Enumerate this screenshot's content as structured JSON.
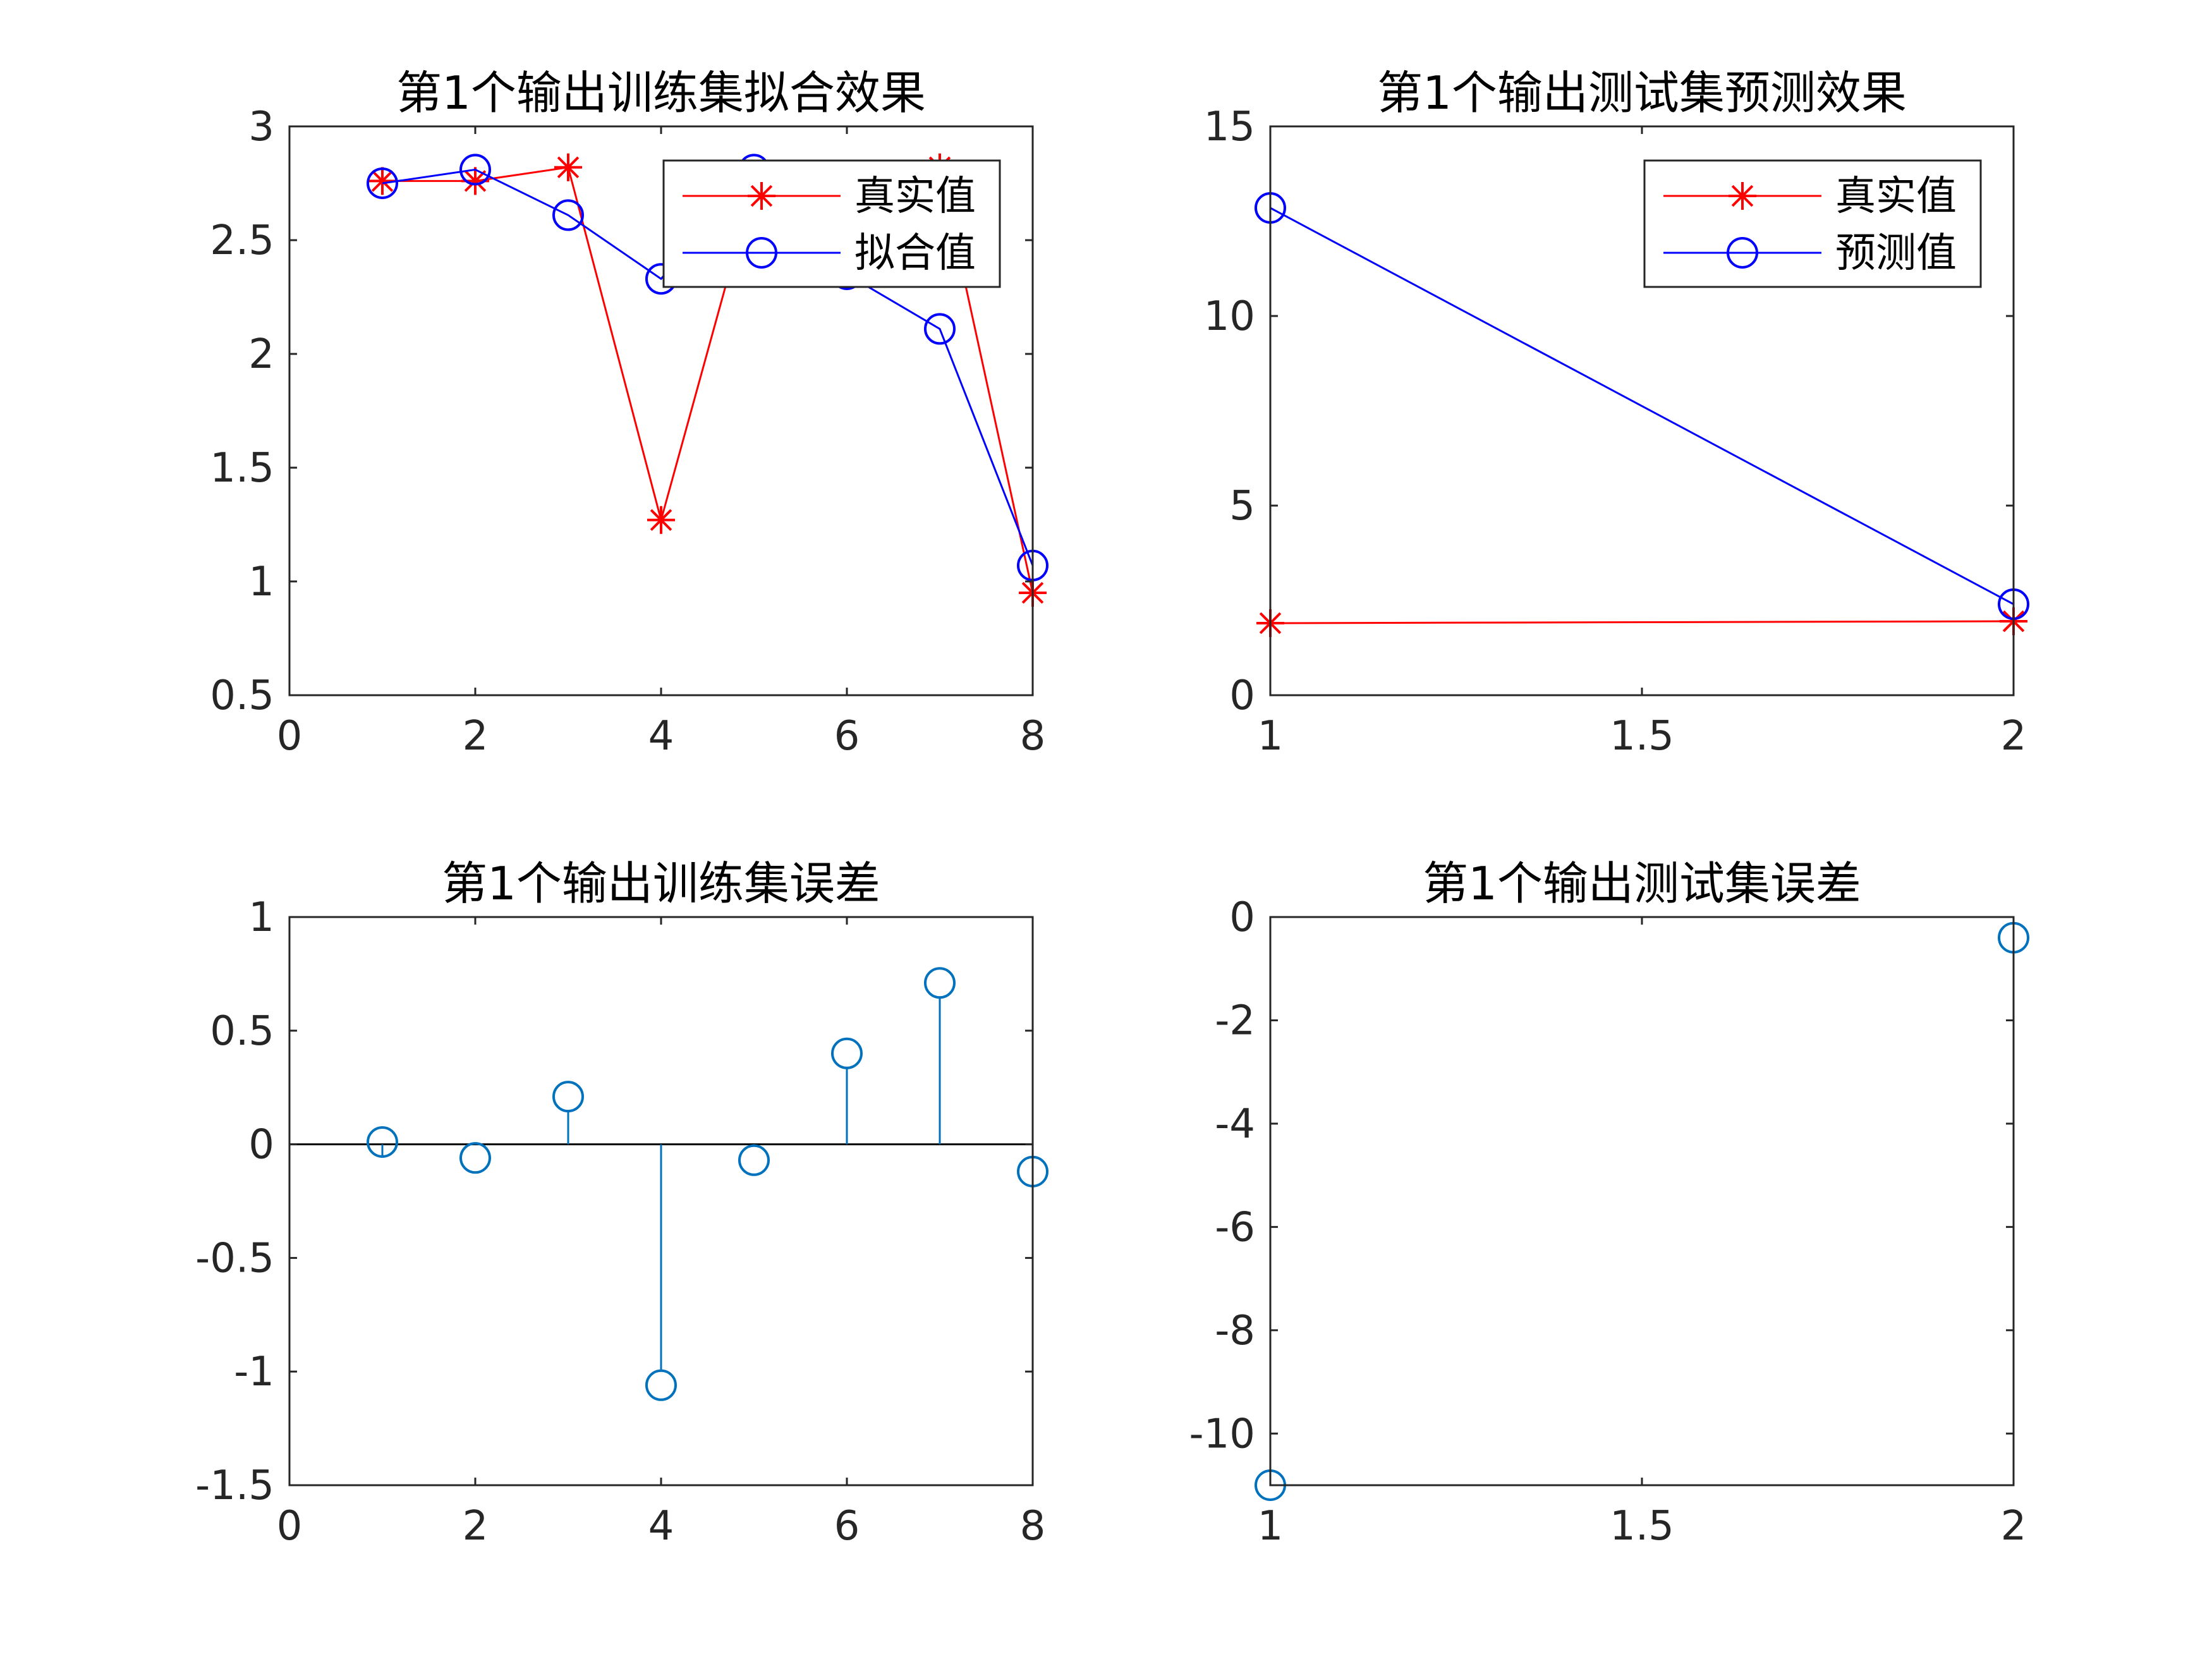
{
  "colors": {
    "true_value": "#ff0000",
    "predicted_value": "#0000ff",
    "error_stem": "#0072bd",
    "zero_line": "#000000",
    "axis": "#262626",
    "background": "#ffffff"
  },
  "chart_data": [
    {
      "id": "train-fit",
      "type": "line",
      "title": "第1个输出训练集拟合效果",
      "xlabel": "",
      "ylabel": "",
      "xlim": [
        0,
        8
      ],
      "ylim": [
        0.5,
        3
      ],
      "xticks": [
        0,
        2,
        4,
        6,
        8
      ],
      "xtick_labels": [
        "0",
        "2",
        "4",
        "6",
        "8"
      ],
      "yticks": [
        0.5,
        1,
        1.5,
        2,
        2.5,
        3
      ],
      "ytick_labels": [
        "0.5",
        "1",
        "1.5",
        "2",
        "2.5",
        "3"
      ],
      "grid": false,
      "legend_position": "top-right",
      "series": [
        {
          "name": "真实值",
          "color": "#ff0000",
          "marker": "asterisk",
          "x": [
            1,
            2,
            3,
            4,
            5,
            6,
            7,
            8
          ],
          "y": [
            2.76,
            2.76,
            2.82,
            1.27,
            2.75,
            2.75,
            2.82,
            0.95
          ]
        },
        {
          "name": "拟合值",
          "color": "#0000ff",
          "marker": "circle",
          "x": [
            1,
            2,
            3,
            4,
            5,
            6,
            7,
            8
          ],
          "y": [
            2.75,
            2.81,
            2.61,
            2.33,
            2.81,
            2.35,
            2.11,
            1.07
          ]
        }
      ]
    },
    {
      "id": "test-predict",
      "type": "line",
      "title": "第1个输出测试集预测效果",
      "xlabel": "",
      "ylabel": "",
      "xlim": [
        1,
        2
      ],
      "ylim": [
        0,
        15
      ],
      "xticks": [
        1,
        1.5,
        2
      ],
      "xtick_labels": [
        "1",
        "1.5",
        "2"
      ],
      "yticks": [
        0,
        5,
        10,
        15
      ],
      "ytick_labels": [
        "0",
        "5",
        "10",
        "15"
      ],
      "grid": false,
      "legend_position": "top-right",
      "series": [
        {
          "name": "真实值",
          "color": "#ff0000",
          "marker": "asterisk",
          "x": [
            1,
            2
          ],
          "y": [
            1.9,
            1.95
          ]
        },
        {
          "name": "预测值",
          "color": "#0000ff",
          "marker": "circle",
          "x": [
            1,
            2
          ],
          "y": [
            12.85,
            2.4
          ]
        }
      ]
    },
    {
      "id": "train-error",
      "type": "stem",
      "title": "第1个输出训练集误差",
      "xlabel": "",
      "ylabel": "",
      "xlim": [
        0,
        8
      ],
      "ylim": [
        -1.5,
        1
      ],
      "xticks": [
        0,
        2,
        4,
        6,
        8
      ],
      "xtick_labels": [
        "0",
        "2",
        "4",
        "6",
        "8"
      ],
      "yticks": [
        -1.5,
        -1,
        -0.5,
        0,
        0.5,
        1
      ],
      "ytick_labels": [
        "-1.5",
        "-1",
        "-0.5",
        "0",
        "0.5",
        "1"
      ],
      "grid": false,
      "baseline": 0,
      "series": [
        {
          "color": "#0072bd",
          "marker": "circle",
          "x": [
            1,
            2,
            3,
            4,
            5,
            6,
            7,
            8
          ],
          "y": [
            0.01,
            -0.06,
            0.21,
            -1.06,
            -0.07,
            0.4,
            0.71,
            -0.12
          ]
        }
      ]
    },
    {
      "id": "test-error",
      "type": "stem",
      "title": "第1个输出测试集误差",
      "xlabel": "",
      "ylabel": "",
      "xlim": [
        1,
        2
      ],
      "ylim": [
        -11,
        0
      ],
      "xticks": [
        1,
        1.5,
        2
      ],
      "xtick_labels": [
        "1",
        "1.5",
        "2"
      ],
      "yticks": [
        -10,
        -8,
        -6,
        -4,
        -2,
        0
      ],
      "ytick_labels": [
        "-10",
        "-8",
        "-6",
        "-4",
        "-2",
        "0"
      ],
      "grid": false,
      "baseline": 0,
      "series": [
        {
          "color": "#0072bd",
          "marker": "circle",
          "x": [
            1,
            2
          ],
          "y": [
            -11,
            -0.4
          ]
        }
      ]
    }
  ]
}
